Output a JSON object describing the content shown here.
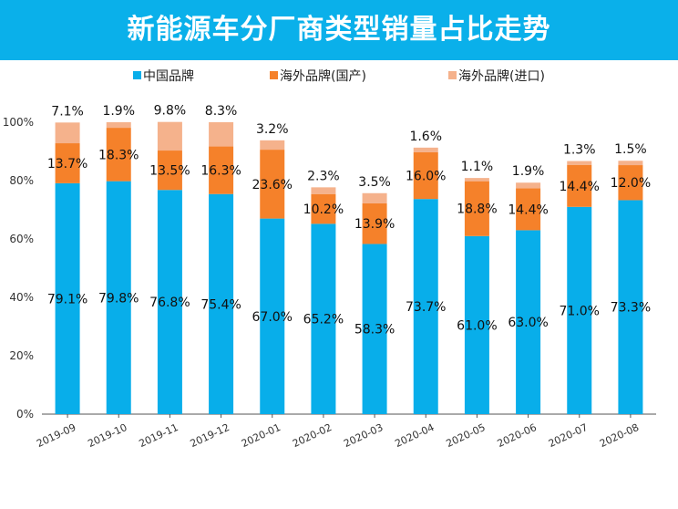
{
  "header": {
    "title": "新能源车分厂商类型销量占比走势"
  },
  "colors": {
    "header_bg": "#0ab0ea",
    "domestic": "#08aeea",
    "overseas_local": "#f5812a",
    "overseas_import": "#f5b28c"
  },
  "chart_data": {
    "type": "bar",
    "stacked": true,
    "title": "新能源车分厂商类型销量占比走势",
    "categories": [
      "2019-09",
      "2019-10",
      "2019-11",
      "2019-12",
      "2020-01",
      "2020-02",
      "2020-03",
      "2020-04",
      "2020-05",
      "2020-06",
      "2020-07",
      "2020-08"
    ],
    "series": [
      {
        "name": "中国品牌",
        "color": "#08aeea",
        "values": [
          79.1,
          79.8,
          76.8,
          75.4,
          67.0,
          65.2,
          58.3,
          73.7,
          61.0,
          63.0,
          71.0,
          73.3
        ]
      },
      {
        "name": "海外品牌(国产)",
        "color": "#f5812a",
        "values": [
          13.7,
          18.3,
          13.5,
          16.3,
          23.6,
          10.2,
          13.9,
          16.0,
          18.8,
          14.4,
          14.4,
          12.0
        ]
      },
      {
        "name": "海外品牌(进口)",
        "color": "#f5b28c",
        "values": [
          7.1,
          1.9,
          9.8,
          8.3,
          3.2,
          2.3,
          3.5,
          1.6,
          1.1,
          1.9,
          1.3,
          1.5
        ]
      }
    ],
    "y_ticks": [
      "0%",
      "20%",
      "40%",
      "60%",
      "80%",
      "100%"
    ],
    "ylim": [
      0,
      100
    ],
    "legend_position": "top",
    "grid": false
  }
}
